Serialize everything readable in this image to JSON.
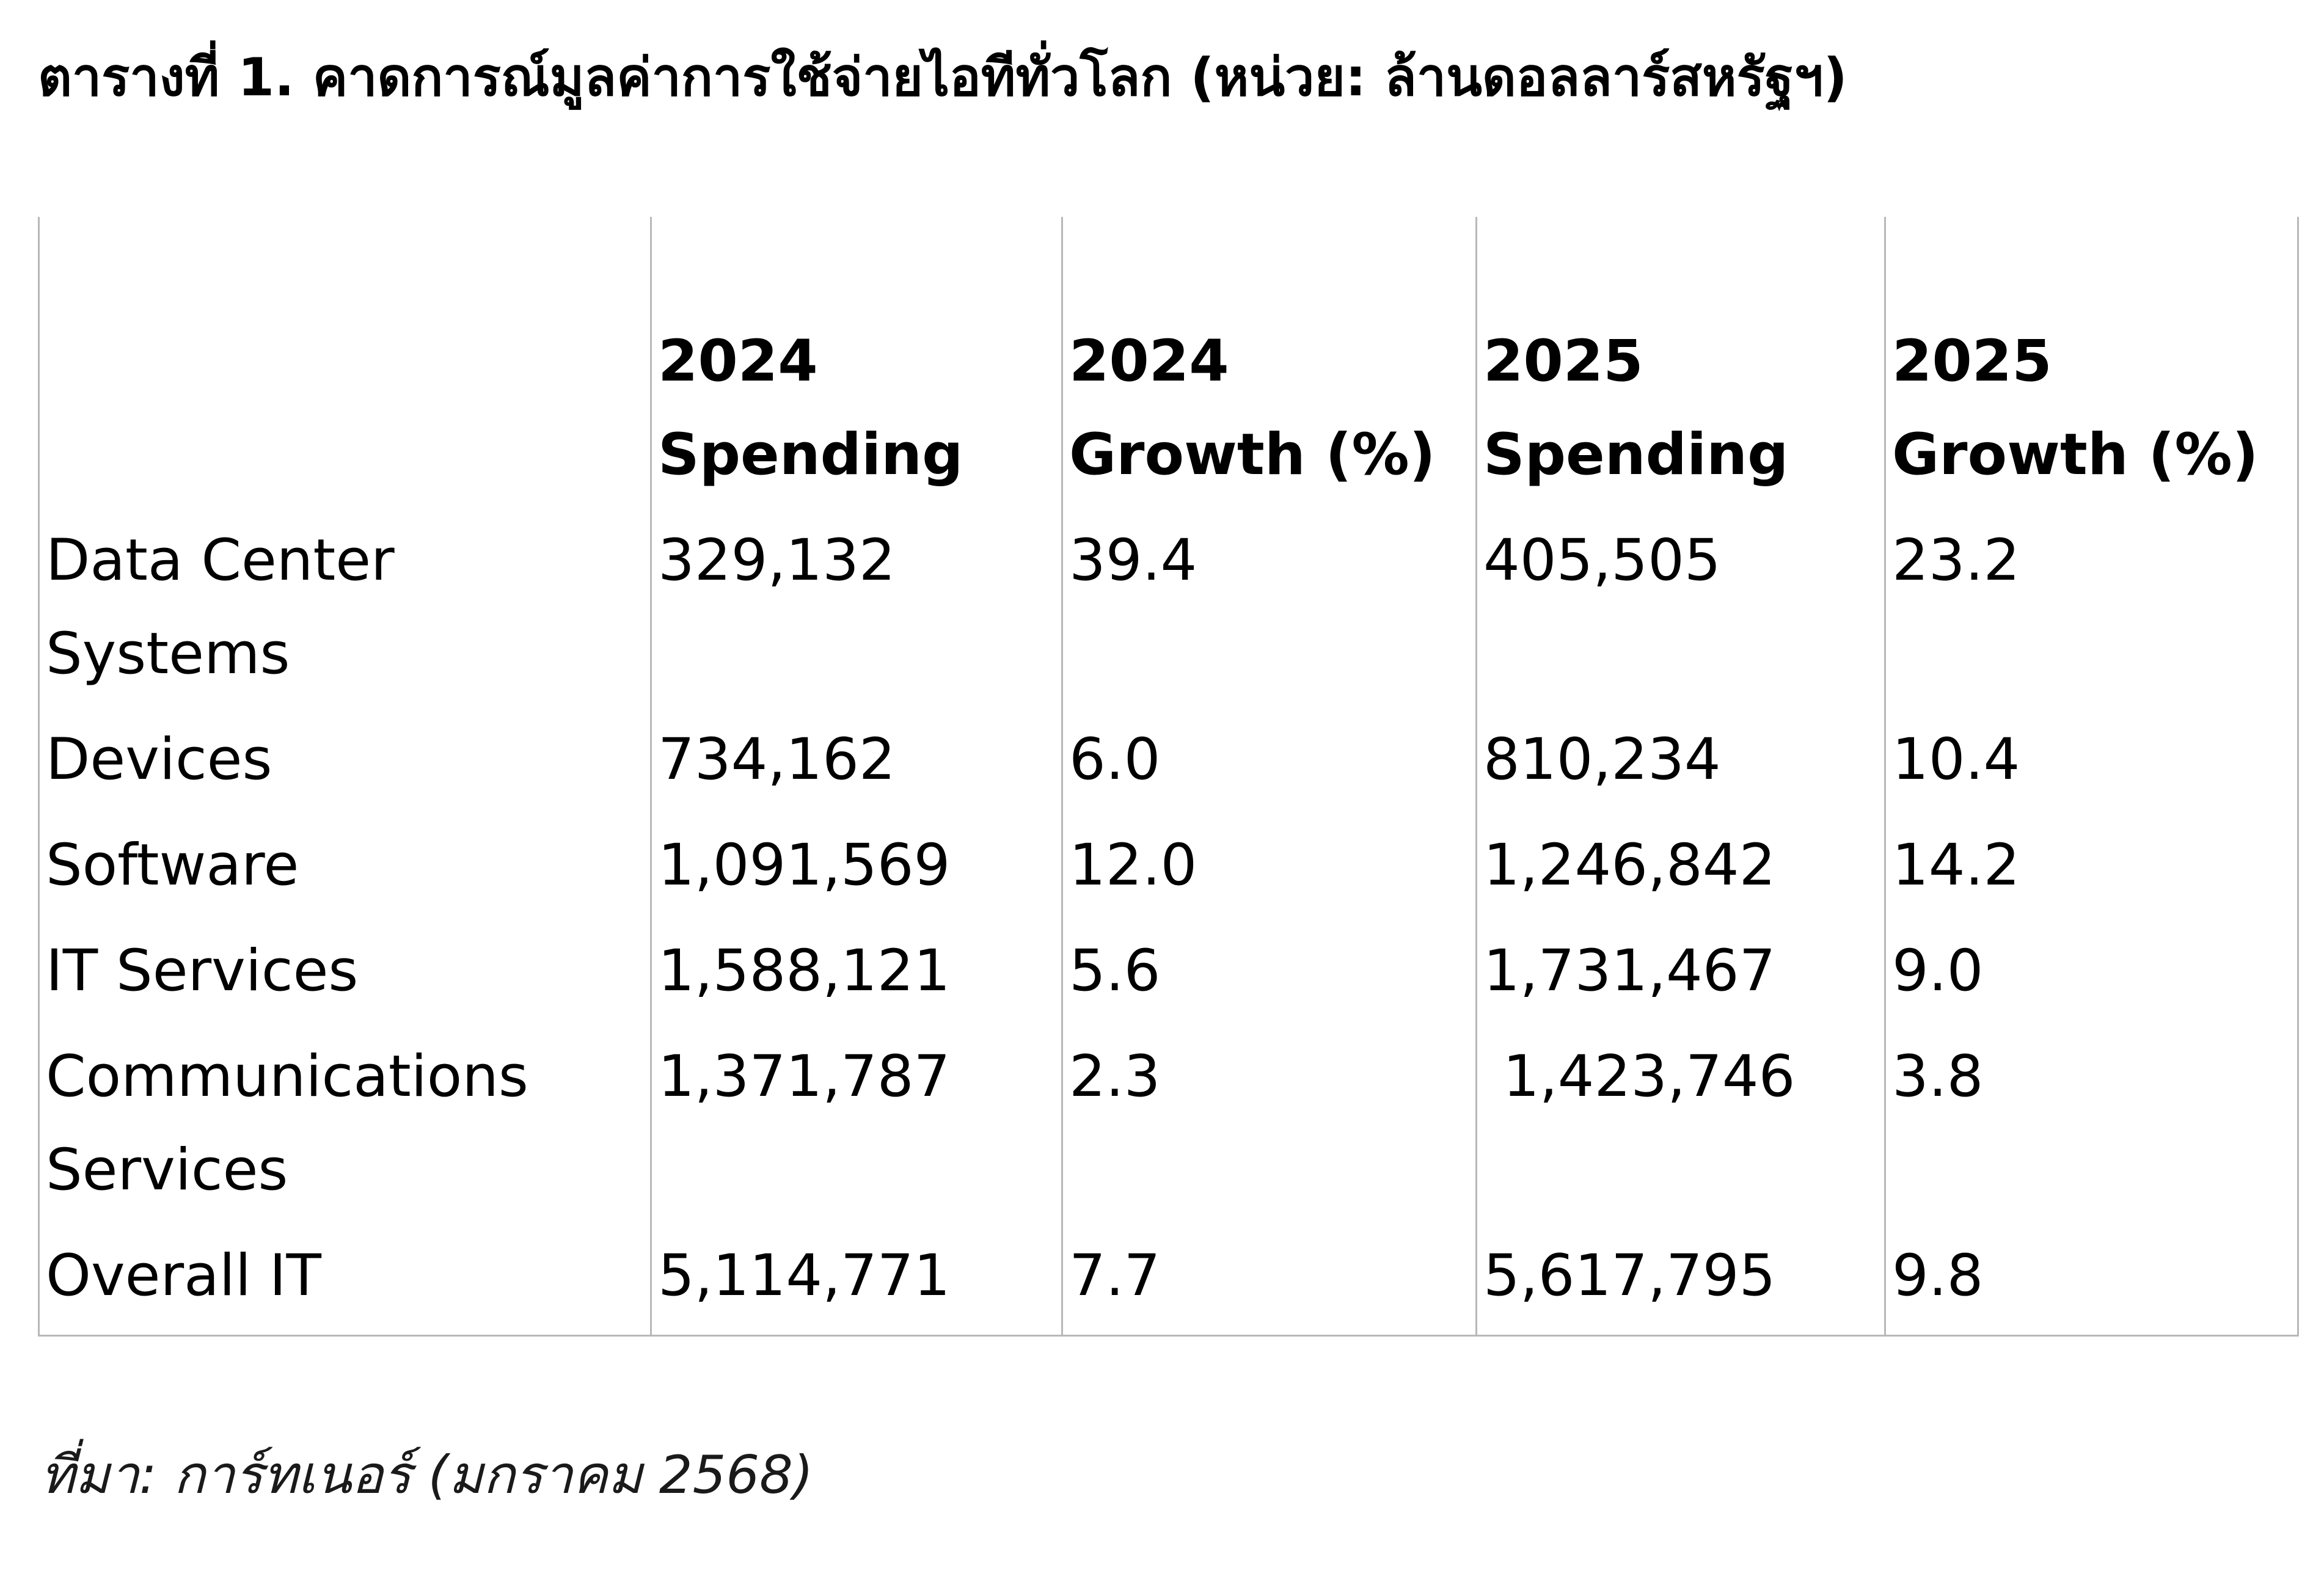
{
  "title": "ตารางที่ 1. คาดการณ์มูลค่าการใช้จ่ายไอทีทั่วโลก (หน่วย: ล้านดอลลาร์สหรัฐฯ)",
  "chart_data": {
    "type": "table",
    "columns": [
      "",
      "2024 Spending",
      "2024 Growth (%)",
      "2025 Spending",
      "2025 Growth (%)"
    ],
    "rows": [
      [
        "Data Center Systems",
        "329,132",
        "39.4",
        "405,505",
        "23.2"
      ],
      [
        "Devices",
        "734,162",
        "6.0",
        "810,234",
        "10.4"
      ],
      [
        "Software",
        "1,091,569",
        "12.0",
        "1,246,842",
        "14.2"
      ],
      [
        "IT Services",
        "1,588,121",
        "5.6",
        "1,731,467",
        "9.0"
      ],
      [
        "Communications Services",
        "1,371,787",
        "2.3",
        "1,423,746",
        "3.8"
      ],
      [
        "Overall IT",
        "5,114,771",
        "7.7",
        "5,617,795",
        "9.8"
      ]
    ]
  },
  "source": "ที่มา: การ์ทเนอร์ (มกราคม 2568)"
}
